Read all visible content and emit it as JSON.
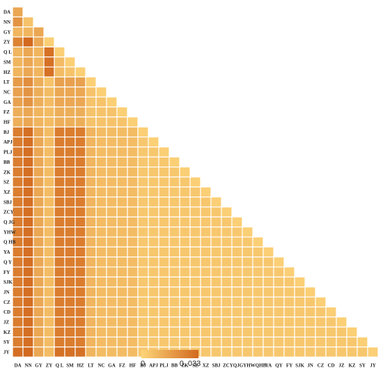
{
  "chart_data": {
    "type": "heatmap",
    "shape": "lower-triangle",
    "labels": [
      "DA",
      "NN",
      "GY",
      "ZY",
      "QL",
      "SM",
      "HZ",
      "LT",
      "NC",
      "GA",
      "FZ",
      "HF",
      "BJ",
      "APJ",
      "PLJ",
      "BB",
      "ZK",
      "SZ",
      "XZ",
      "SBJ",
      "ZCY",
      "QJG",
      "YHW",
      "QHB",
      "YA",
      "QY",
      "FY",
      "SJK",
      "JN",
      "CZ",
      "CD",
      "JZ",
      "KZ",
      "SY",
      "JY"
    ],
    "x_tick_labels": [
      "DA",
      "NN",
      "GY",
      "ZY",
      "Q L",
      "SM",
      "HZ",
      "LT",
      "NC",
      "GA",
      "FZ",
      "HF",
      "BJ",
      "APJ",
      "PLJ",
      "BB",
      "ZK",
      "SZ",
      "XZ",
      "SBJ",
      "ZCYQJGYHWQHB",
      "",
      "",
      "",
      "YA",
      "QY",
      "FY",
      "SJK",
      "JN",
      "CZ",
      "CD",
      "JZ",
      "KZ",
      "SY",
      "JY"
    ],
    "y_tick_labels": [
      "DA",
      "NN",
      "GY",
      "ZY",
      "Q L",
      "SM",
      "HZ",
      "LT",
      "NC",
      "GA",
      "FZ",
      "HF",
      "BJ",
      "APJ",
      "PLJ",
      "BB",
      "ZK",
      "SZ",
      "XZ",
      "SBJ",
      "ZCY",
      "Q JG",
      "YHW",
      "Q HB",
      "YA",
      "Q Y",
      "FY",
      "SJK",
      "JN",
      "CZ",
      "CD",
      "JZ",
      "KZ",
      "SY",
      "JY"
    ],
    "colorscale": {
      "min": 0,
      "max": 0.033,
      "min_label": "0",
      "max_label": "0. 033",
      "low_color": "#FDD57A",
      "high_color": "#D2691E"
    },
    "values": [
      [
        0.012
      ],
      [
        0.018,
        0.004
      ],
      [
        0.008,
        0.008,
        0.012
      ],
      [
        0.024,
        0.033,
        0.012,
        0.001
      ],
      [
        0.008,
        0.012,
        0.008,
        0.03,
        0.001
      ],
      [
        0.008,
        0.012,
        0.008,
        0.03,
        0.006,
        0.001
      ],
      [
        0.008,
        0.012,
        0.008,
        0.03,
        0.006,
        0.004,
        0.001
      ],
      [
        0.016,
        0.02,
        0.01,
        0.004,
        0.014,
        0.014,
        0.014,
        0.001
      ],
      [
        0.014,
        0.018,
        0.01,
        0.006,
        0.012,
        0.012,
        0.012,
        0.004,
        0.001
      ],
      [
        0.014,
        0.018,
        0.01,
        0.006,
        0.012,
        0.012,
        0.012,
        0.004,
        0.004,
        0.001
      ],
      [
        0.01,
        0.012,
        0.008,
        0.006,
        0.01,
        0.01,
        0.01,
        0.004,
        0.004,
        0.004,
        0.001
      ],
      [
        0.01,
        0.012,
        0.008,
        0.006,
        0.01,
        0.01,
        0.01,
        0.004,
        0.004,
        0.004,
        0.004,
        0.001
      ],
      [
        0.026,
        0.031,
        0.012,
        0.006,
        0.026,
        0.026,
        0.026,
        0.008,
        0.006,
        0.006,
        0.006,
        0.006,
        0.001
      ],
      [
        0.026,
        0.031,
        0.012,
        0.006,
        0.026,
        0.026,
        0.026,
        0.008,
        0.006,
        0.006,
        0.006,
        0.006,
        0.003,
        0.001
      ],
      [
        0.026,
        0.031,
        0.012,
        0.006,
        0.026,
        0.026,
        0.026,
        0.008,
        0.006,
        0.006,
        0.006,
        0.006,
        0.003,
        0.003,
        0.001
      ],
      [
        0.026,
        0.031,
        0.012,
        0.006,
        0.026,
        0.026,
        0.026,
        0.008,
        0.006,
        0.006,
        0.006,
        0.006,
        0.003,
        0.003,
        0.003,
        0.001
      ],
      [
        0.026,
        0.031,
        0.012,
        0.006,
        0.026,
        0.026,
        0.026,
        0.008,
        0.006,
        0.006,
        0.006,
        0.006,
        0.003,
        0.003,
        0.003,
        0.003,
        0.001
      ],
      [
        0.026,
        0.031,
        0.012,
        0.006,
        0.026,
        0.026,
        0.026,
        0.008,
        0.006,
        0.006,
        0.006,
        0.006,
        0.003,
        0.003,
        0.003,
        0.003,
        0.003,
        0.001
      ],
      [
        0.026,
        0.031,
        0.012,
        0.006,
        0.026,
        0.026,
        0.026,
        0.008,
        0.006,
        0.006,
        0.006,
        0.006,
        0.003,
        0.003,
        0.003,
        0.003,
        0.003,
        0.003,
        0.001
      ],
      [
        0.026,
        0.031,
        0.012,
        0.006,
        0.026,
        0.026,
        0.026,
        0.008,
        0.006,
        0.006,
        0.006,
        0.006,
        0.003,
        0.003,
        0.003,
        0.003,
        0.003,
        0.003,
        0.003,
        0.001
      ],
      [
        0.026,
        0.031,
        0.012,
        0.006,
        0.026,
        0.026,
        0.026,
        0.008,
        0.006,
        0.006,
        0.006,
        0.006,
        0.003,
        0.003,
        0.003,
        0.003,
        0.003,
        0.003,
        0.003,
        0.003,
        0.001
      ],
      [
        0.026,
        0.031,
        0.012,
        0.006,
        0.026,
        0.026,
        0.026,
        0.008,
        0.006,
        0.006,
        0.006,
        0.006,
        0.003,
        0.003,
        0.003,
        0.003,
        0.003,
        0.003,
        0.003,
        0.003,
        0.003,
        0.001
      ],
      [
        0.026,
        0.031,
        0.012,
        0.006,
        0.026,
        0.026,
        0.026,
        0.008,
        0.006,
        0.006,
        0.006,
        0.006,
        0.003,
        0.003,
        0.003,
        0.003,
        0.003,
        0.003,
        0.003,
        0.003,
        0.003,
        0.003,
        0.001
      ],
      [
        0.026,
        0.031,
        0.012,
        0.006,
        0.026,
        0.026,
        0.026,
        0.008,
        0.006,
        0.006,
        0.006,
        0.006,
        0.003,
        0.003,
        0.003,
        0.003,
        0.003,
        0.003,
        0.003,
        0.003,
        0.003,
        0.003,
        0.003,
        0.001
      ],
      [
        0.026,
        0.031,
        0.012,
        0.006,
        0.026,
        0.026,
        0.026,
        0.008,
        0.006,
        0.006,
        0.006,
        0.006,
        0.003,
        0.003,
        0.003,
        0.003,
        0.003,
        0.003,
        0.003,
        0.003,
        0.003,
        0.003,
        0.003,
        0.003,
        0.001
      ],
      [
        0.026,
        0.031,
        0.012,
        0.006,
        0.026,
        0.026,
        0.026,
        0.008,
        0.006,
        0.006,
        0.006,
        0.006,
        0.003,
        0.003,
        0.003,
        0.003,
        0.003,
        0.003,
        0.003,
        0.003,
        0.003,
        0.003,
        0.003,
        0.003,
        0.003,
        0.001
      ],
      [
        0.026,
        0.031,
        0.012,
        0.006,
        0.026,
        0.026,
        0.026,
        0.008,
        0.006,
        0.006,
        0.006,
        0.006,
        0.003,
        0.003,
        0.003,
        0.003,
        0.003,
        0.003,
        0.003,
        0.003,
        0.003,
        0.003,
        0.003,
        0.003,
        0.003,
        0.003,
        0.001
      ],
      [
        0.026,
        0.031,
        0.012,
        0.006,
        0.026,
        0.026,
        0.026,
        0.008,
        0.006,
        0.006,
        0.006,
        0.006,
        0.003,
        0.003,
        0.003,
        0.003,
        0.003,
        0.003,
        0.003,
        0.003,
        0.003,
        0.003,
        0.003,
        0.003,
        0.003,
        0.003,
        0.003,
        0.001
      ],
      [
        0.026,
        0.031,
        0.012,
        0.006,
        0.026,
        0.026,
        0.026,
        0.008,
        0.006,
        0.006,
        0.006,
        0.006,
        0.003,
        0.003,
        0.003,
        0.003,
        0.003,
        0.003,
        0.003,
        0.003,
        0.003,
        0.003,
        0.003,
        0.003,
        0.003,
        0.003,
        0.003,
        0.003,
        0.001
      ],
      [
        0.026,
        0.031,
        0.012,
        0.006,
        0.026,
        0.026,
        0.026,
        0.008,
        0.006,
        0.006,
        0.006,
        0.006,
        0.003,
        0.003,
        0.003,
        0.003,
        0.003,
        0.003,
        0.003,
        0.003,
        0.003,
        0.003,
        0.003,
        0.003,
        0.003,
        0.003,
        0.003,
        0.003,
        0.003,
        0.001
      ],
      [
        0.026,
        0.031,
        0.012,
        0.006,
        0.026,
        0.026,
        0.026,
        0.008,
        0.006,
        0.006,
        0.006,
        0.006,
        0.003,
        0.003,
        0.003,
        0.003,
        0.003,
        0.003,
        0.003,
        0.003,
        0.003,
        0.003,
        0.003,
        0.003,
        0.003,
        0.003,
        0.003,
        0.003,
        0.003,
        0.003,
        0.001
      ],
      [
        0.026,
        0.031,
        0.012,
        0.006,
        0.026,
        0.026,
        0.026,
        0.008,
        0.006,
        0.006,
        0.006,
        0.006,
        0.003,
        0.003,
        0.003,
        0.003,
        0.003,
        0.003,
        0.003,
        0.003,
        0.003,
        0.003,
        0.003,
        0.003,
        0.003,
        0.003,
        0.003,
        0.003,
        0.003,
        0.003,
        0.003,
        0.001
      ],
      [
        0.026,
        0.031,
        0.012,
        0.006,
        0.026,
        0.026,
        0.026,
        0.008,
        0.006,
        0.006,
        0.006,
        0.006,
        0.003,
        0.003,
        0.003,
        0.003,
        0.003,
        0.003,
        0.003,
        0.003,
        0.003,
        0.003,
        0.003,
        0.003,
        0.003,
        0.003,
        0.003,
        0.003,
        0.003,
        0.003,
        0.003,
        0.003,
        0.001
      ],
      [
        0.026,
        0.031,
        0.012,
        0.006,
        0.026,
        0.026,
        0.026,
        0.008,
        0.006,
        0.006,
        0.006,
        0.006,
        0.003,
        0.003,
        0.003,
        0.003,
        0.003,
        0.003,
        0.003,
        0.003,
        0.003,
        0.003,
        0.003,
        0.003,
        0.003,
        0.003,
        0.003,
        0.003,
        0.003,
        0.003,
        0.003,
        0.003,
        0.003,
        0.001
      ],
      [
        0.031,
        0.033,
        0.012,
        0.006,
        0.03,
        0.03,
        0.03,
        0.008,
        0.006,
        0.006,
        0.006,
        0.006,
        0.003,
        0.003,
        0.003,
        0.003,
        0.003,
        0.003,
        0.003,
        0.003,
        0.003,
        0.003,
        0.003,
        0.003,
        0.003,
        0.003,
        0.003,
        0.003,
        0.003,
        0.003,
        0.003,
        0.003,
        0.003,
        0.003,
        0.001
      ]
    ]
  }
}
